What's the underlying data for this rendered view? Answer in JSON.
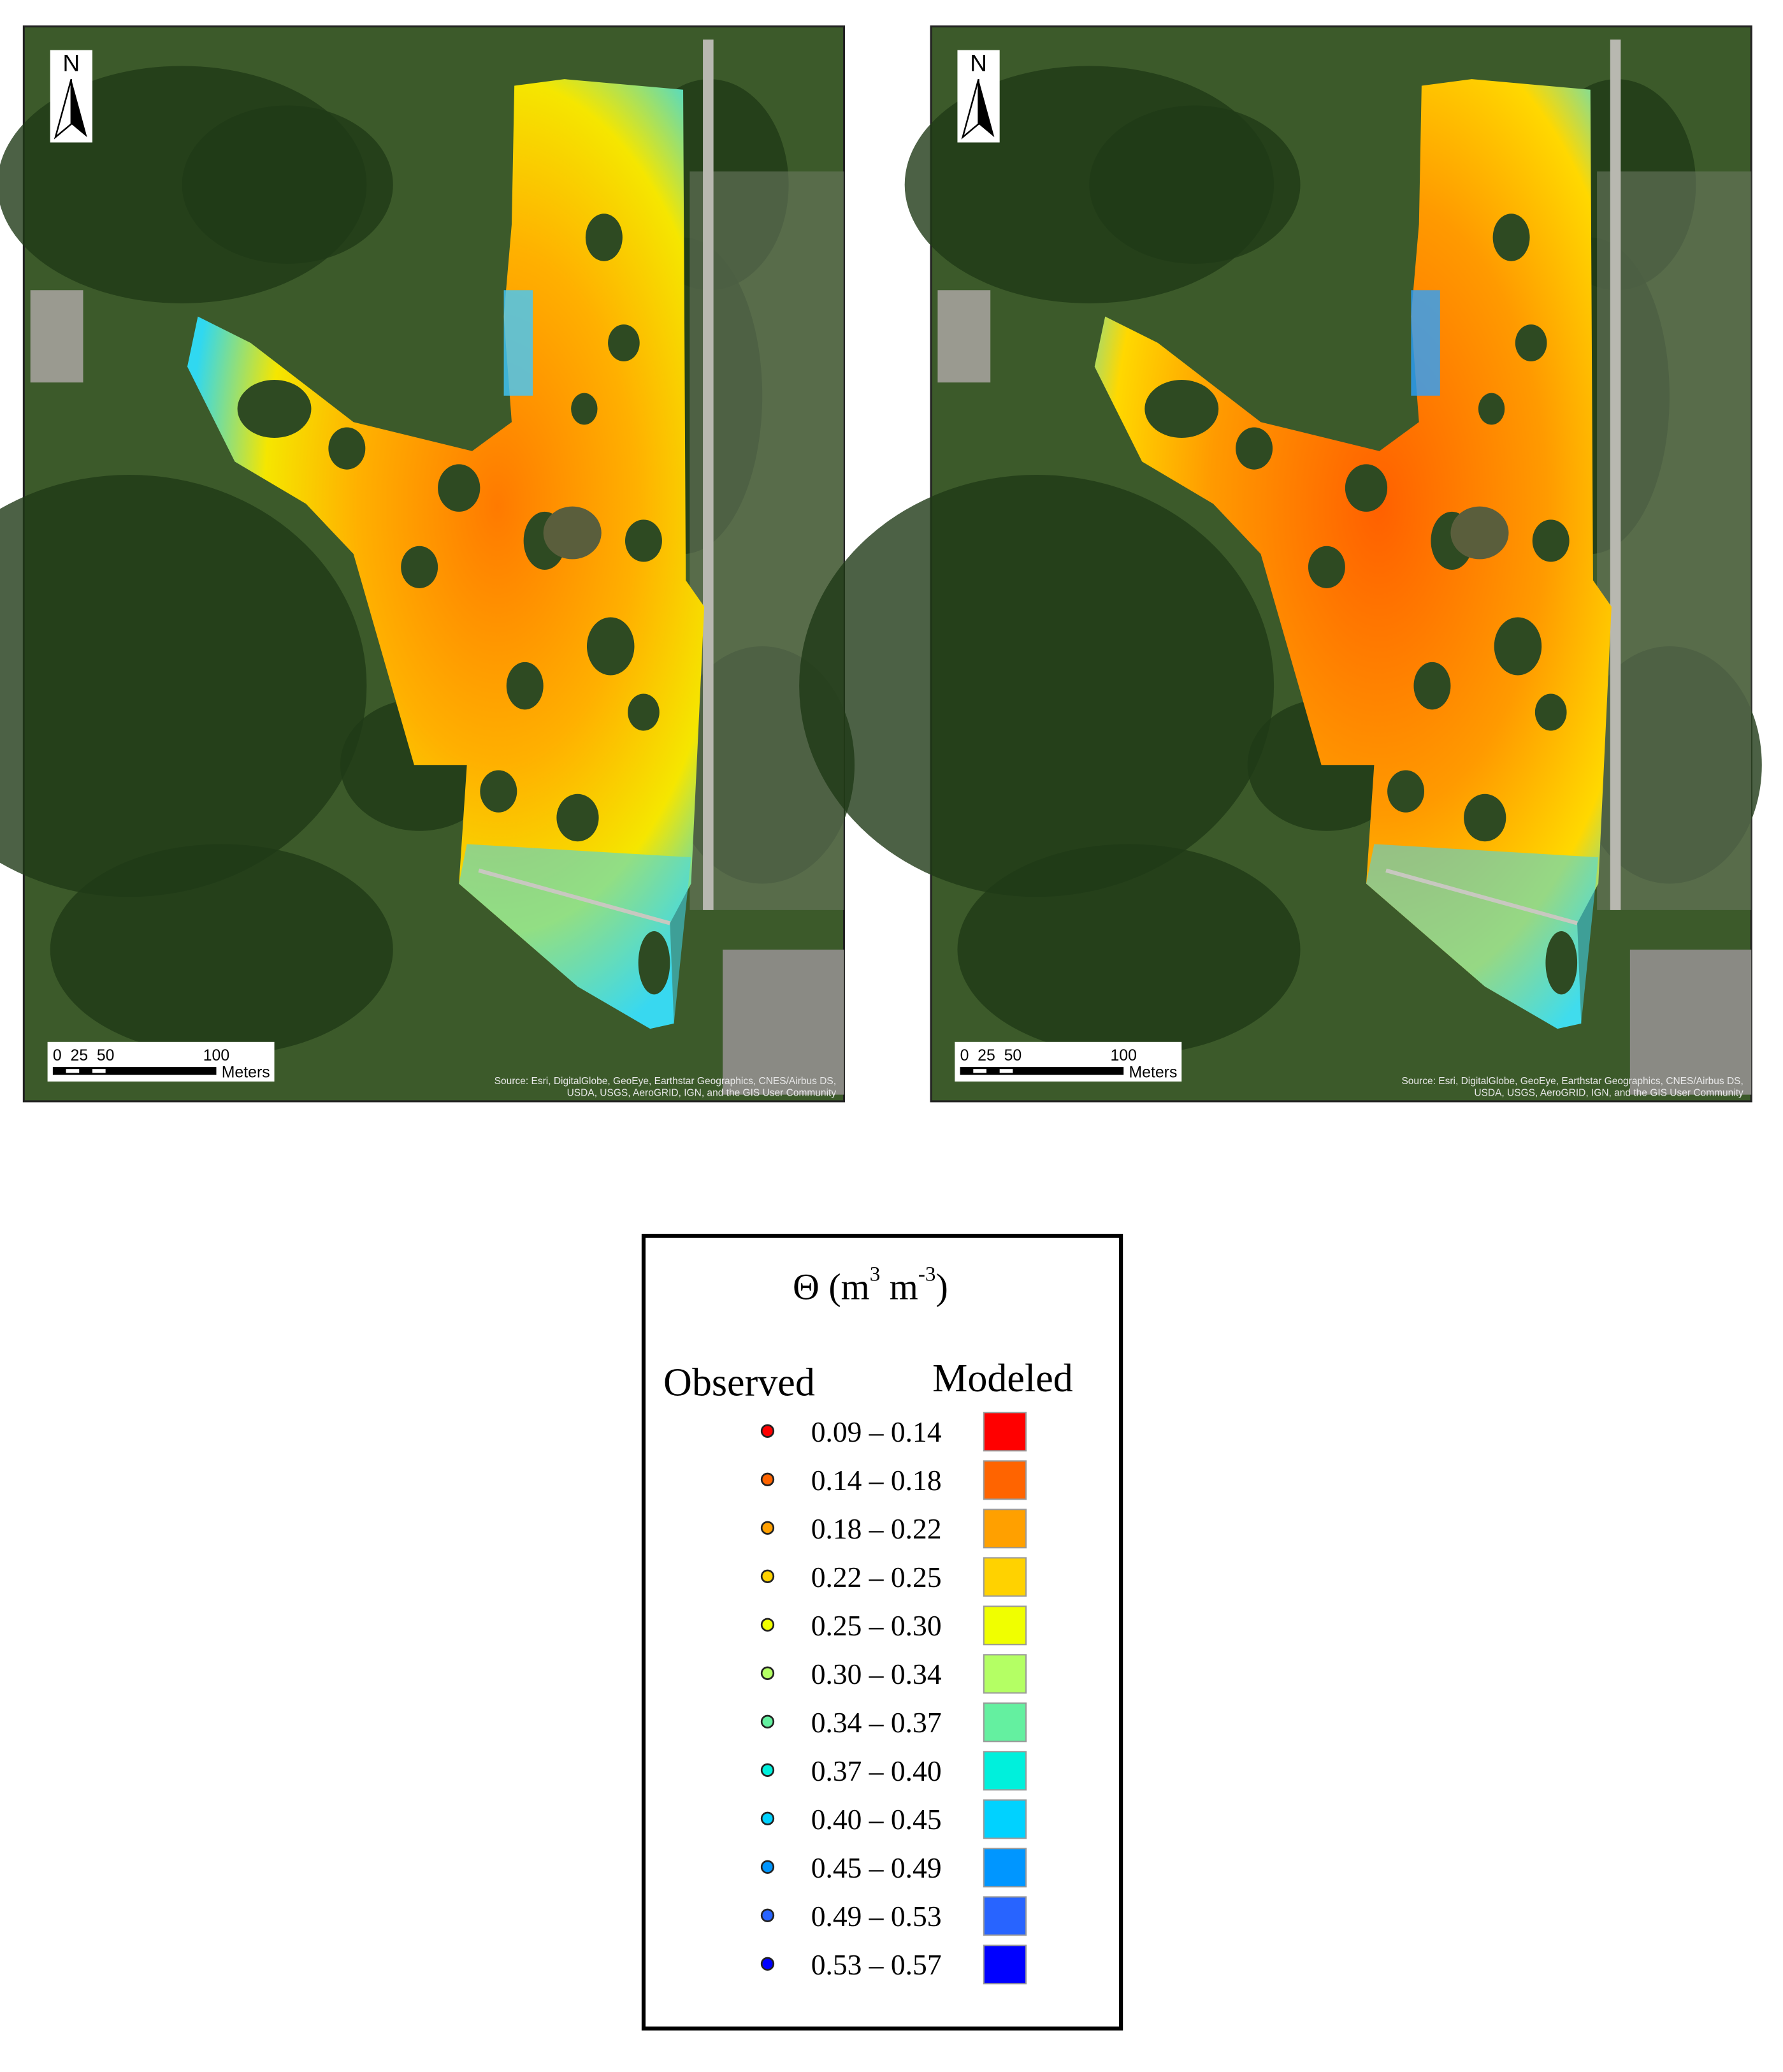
{
  "maps": [
    {
      "north": "N",
      "scale_labels": [
        "0",
        "25",
        "50",
        "100"
      ],
      "unit": "Meters",
      "source": [
        "Source: Esri, DigitalGlobe, GeoEye, Earthstar Geographics, CNES/Airbus DS,",
        "USDA, USGS, AeroGRID, IGN, and the GIS User Community"
      ]
    },
    {
      "north": "N",
      "scale_labels": [
        "0",
        "25",
        "50",
        "100"
      ],
      "unit": "Meters",
      "source": [
        "Source: Esri, DigitalGlobe, GeoEye, Earthstar Geographics, CNES/Airbus DS,",
        "USDA, USGS, AeroGRID, IGN, and the GIS User Community"
      ]
    }
  ],
  "legend": {
    "title": {
      "symbol": "Θ (m",
      "exp1": "3",
      "mid": " m",
      "exp2": "-3",
      "close": ")"
    },
    "observed": "Observed",
    "modeled": "Modeled",
    "classes": [
      {
        "label": "0.09 – 0.14",
        "color": "#ff0000"
      },
      {
        "label": "0.14 – 0.18",
        "color": "#ff6400"
      },
      {
        "label": "0.18 – 0.22",
        "color": "#ffa000"
      },
      {
        "label": "0.22 – 0.25",
        "color": "#ffd200"
      },
      {
        "label": "0.25 – 0.30",
        "color": "#f0ff00"
      },
      {
        "label": "0.30 – 0.34",
        "color": "#b4ff64"
      },
      {
        "label": "0.34 – 0.37",
        "color": "#64f0a0"
      },
      {
        "label": "0.37 – 0.40",
        "color": "#00f0dc"
      },
      {
        "label": "0.40 – 0.45",
        "color": "#00d2ff"
      },
      {
        "label": "0.45 – 0.49",
        "color": "#0096ff"
      },
      {
        "label": "0.49 – 0.53",
        "color": "#2864ff"
      },
      {
        "label": "0.53 – 0.57",
        "color": "#0000ff"
      }
    ]
  }
}
